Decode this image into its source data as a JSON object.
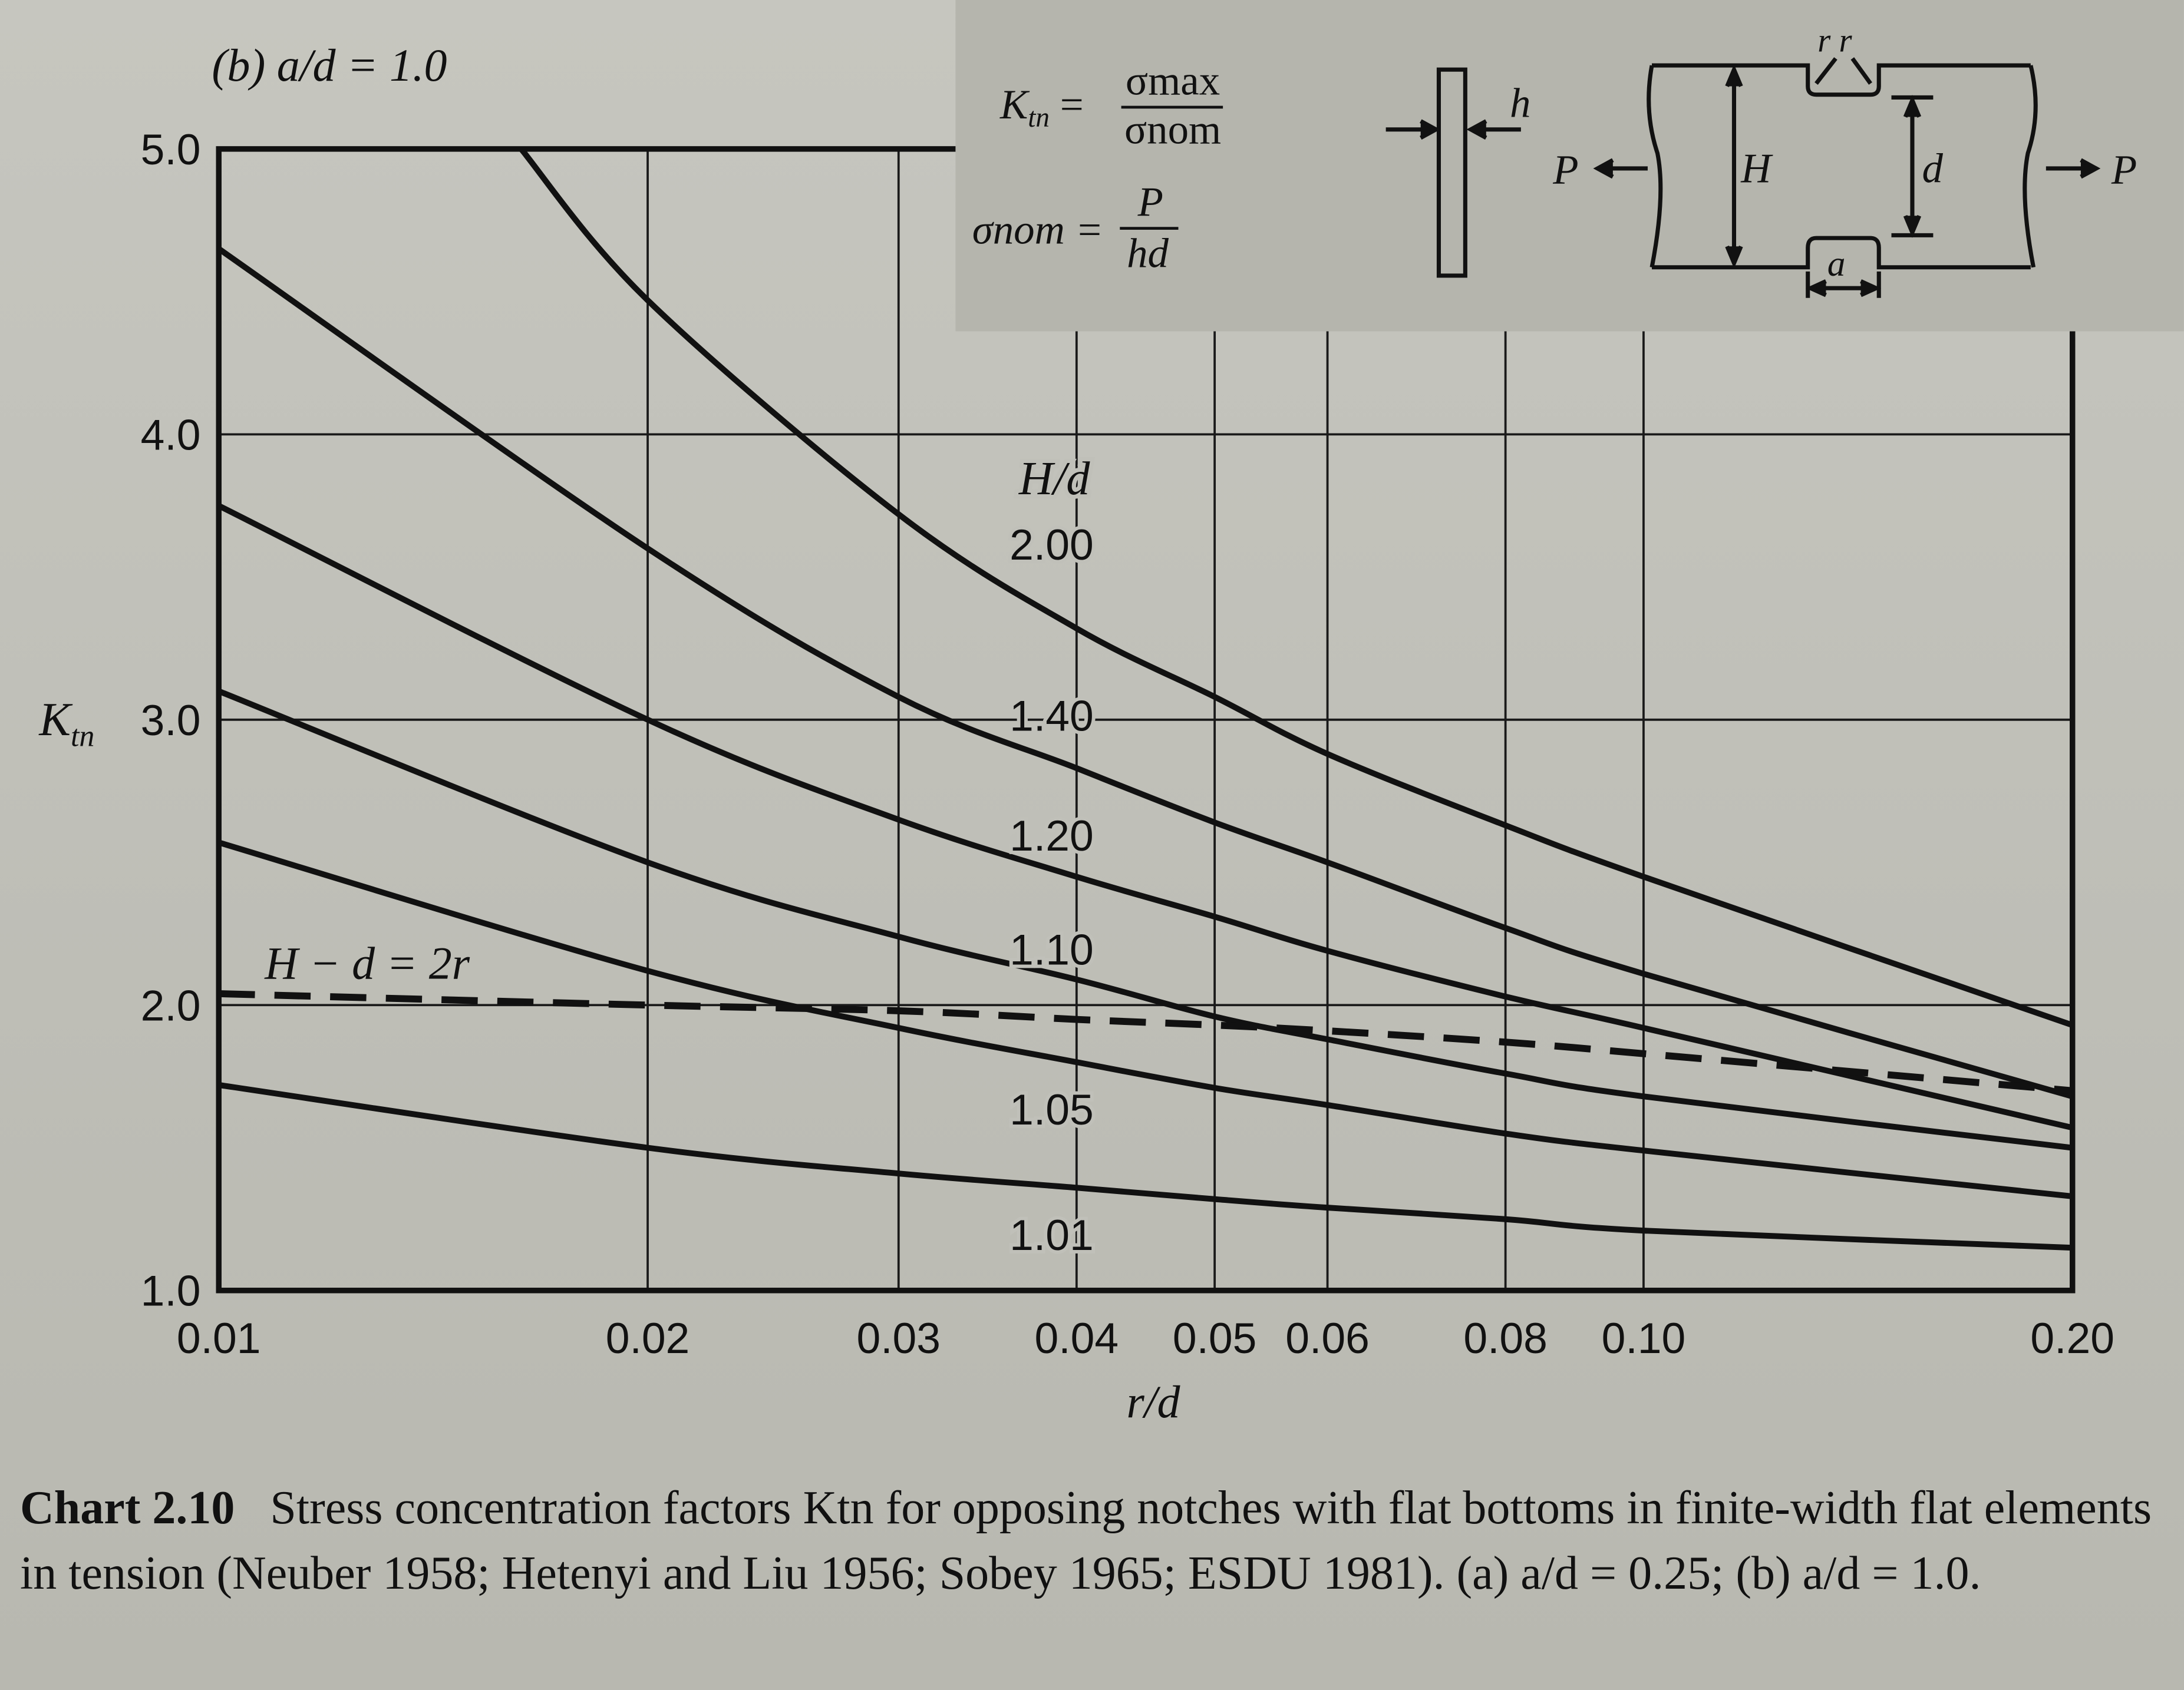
{
  "panel_label": "(b) a/d = 1.0",
  "legend_box": {
    "ktn_formula_lhs": "Ktn =",
    "ktn_formula_num": "σmax",
    "ktn_formula_den": "σnom",
    "snom_formula_lhs": "σnom =",
    "snom_formula_num": "P",
    "snom_formula_den": "hd",
    "dim_h": "h",
    "dim_H": "H",
    "dim_d": "d",
    "dim_a": "a",
    "dim_rr": "r r",
    "load_left": "P",
    "load_right": "P"
  },
  "caption": {
    "label": "Chart 2.10",
    "text": "Stress concentration factors Ktn for opposing notches with flat bottoms in finite-width flat elements in tension (Neuber 1958; Hetenyi and Liu 1956; Sobey 1965; ESDU 1981). (a) a/d = 0.25; (b) a/d = 1.0."
  },
  "chart_data": {
    "type": "line",
    "xscale": "log",
    "xlim": [
      0.01,
      0.2
    ],
    "ylim": [
      1.0,
      5.0
    ],
    "xlabel": "r/d",
    "ylabel": "Ktn",
    "grid": true,
    "x_ticks": [
      0.01,
      0.02,
      0.03,
      0.04,
      0.05,
      0.06,
      0.08,
      0.1,
      0.2
    ],
    "x_tick_labels": [
      "0.01",
      "0.02",
      "0.03",
      "0.04",
      "0.05",
      "0.06",
      "0.08",
      "0.10",
      "0.20"
    ],
    "y_ticks": [
      1.0,
      2.0,
      3.0,
      4.0,
      5.0
    ],
    "y_tick_labels": [
      "1.0",
      "2.0",
      "3.0",
      "4.0",
      "5.0"
    ],
    "family_label": "H/d",
    "series": [
      {
        "name": "2.00",
        "x": [
          0.0163,
          0.02,
          0.03,
          0.04,
          0.05,
          0.06,
          0.08,
          0.1,
          0.2
        ],
        "y": [
          5.0,
          4.47,
          3.72,
          3.32,
          3.08,
          2.88,
          2.63,
          2.45,
          1.93
        ]
      },
      {
        "name": "1.40",
        "x": [
          0.01,
          0.02,
          0.03,
          0.04,
          0.05,
          0.06,
          0.08,
          0.1,
          0.2
        ],
        "y": [
          4.65,
          3.6,
          3.08,
          2.83,
          2.64,
          2.5,
          2.27,
          2.11,
          1.68
        ]
      },
      {
        "name": "1.20",
        "x": [
          0.01,
          0.02,
          0.03,
          0.04,
          0.05,
          0.06,
          0.08,
          0.1,
          0.2
        ],
        "y": [
          3.75,
          3.0,
          2.65,
          2.45,
          2.31,
          2.19,
          2.03,
          1.92,
          1.57
        ]
      },
      {
        "name": "1.10",
        "x": [
          0.01,
          0.02,
          0.03,
          0.04,
          0.05,
          0.06,
          0.08,
          0.1,
          0.2
        ],
        "y": [
          3.1,
          2.5,
          2.24,
          2.09,
          1.96,
          1.88,
          1.76,
          1.68,
          1.5
        ]
      },
      {
        "name": "1.05",
        "x": [
          0.01,
          0.02,
          0.03,
          0.04,
          0.05,
          0.06,
          0.08,
          0.1,
          0.2
        ],
        "y": [
          2.57,
          2.12,
          1.92,
          1.8,
          1.71,
          1.65,
          1.55,
          1.49,
          1.33
        ]
      },
      {
        "name": "1.01",
        "x": [
          0.01,
          0.02,
          0.03,
          0.04,
          0.05,
          0.06,
          0.08,
          0.1,
          0.2
        ],
        "y": [
          1.72,
          1.5,
          1.41,
          1.36,
          1.32,
          1.29,
          1.25,
          1.21,
          1.15
        ]
      },
      {
        "name": "H − d = 2r",
        "style": "dashed",
        "x": [
          0.01,
          0.02,
          0.03,
          0.04,
          0.05,
          0.06,
          0.08,
          0.1,
          0.2
        ],
        "y": [
          2.04,
          2.0,
          1.98,
          1.95,
          1.93,
          1.91,
          1.87,
          1.83,
          1.7
        ]
      }
    ],
    "series_labels": [
      "2.00",
      "1.40",
      "1.20",
      "1.10",
      "1.05",
      "1.01"
    ],
    "dashed_label": "H − d = 2r"
  }
}
